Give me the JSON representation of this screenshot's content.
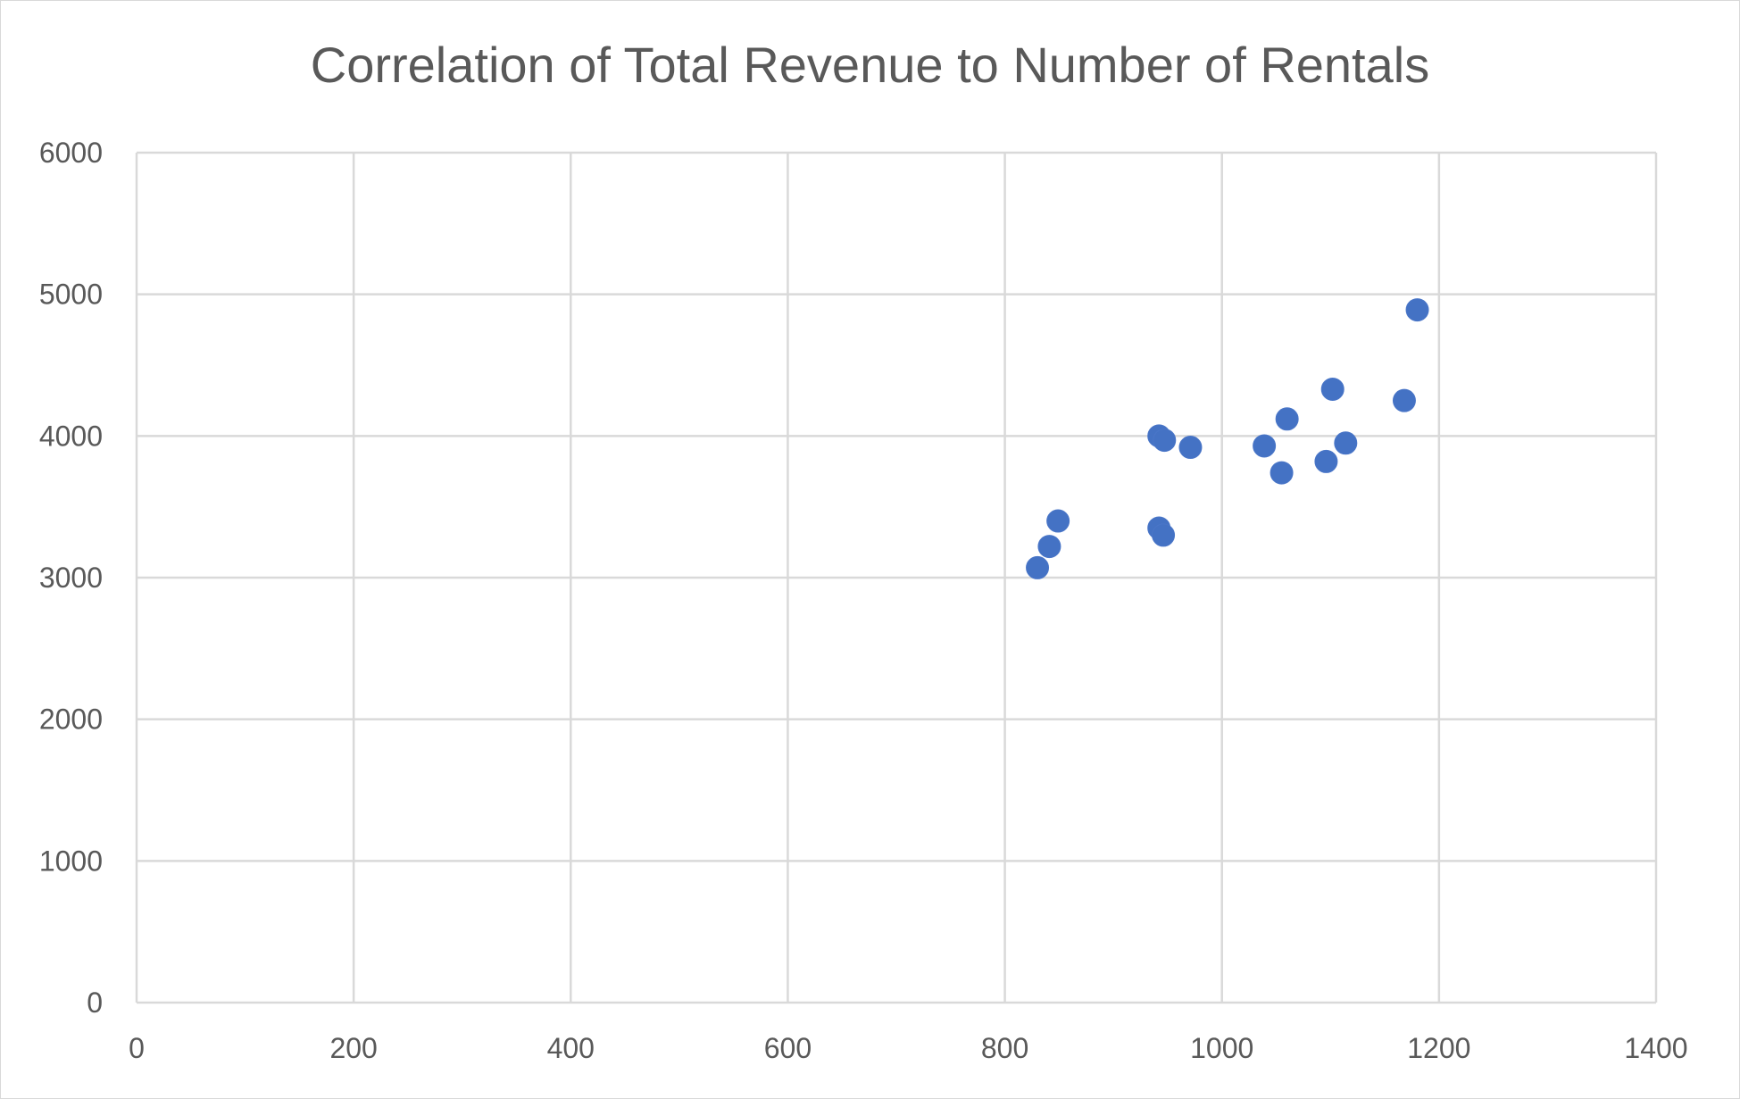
{
  "chart_data": {
    "type": "scatter",
    "title": "Correlation of Total Revenue to Number of Rentals",
    "xlabel": "",
    "ylabel": "",
    "xlim": [
      0,
      1400
    ],
    "ylim": [
      0,
      6000
    ],
    "x_ticks": [
      0,
      200,
      400,
      600,
      800,
      1000,
      1200,
      1400
    ],
    "y_ticks": [
      0,
      1000,
      2000,
      3000,
      4000,
      5000,
      6000
    ],
    "grid": true,
    "legend": "none",
    "marker_color": "#4472c4",
    "points": [
      {
        "x": 830,
        "y": 3070
      },
      {
        "x": 841,
        "y": 3220
      },
      {
        "x": 849,
        "y": 3400
      },
      {
        "x": 942,
        "y": 3350
      },
      {
        "x": 946,
        "y": 3300
      },
      {
        "x": 942,
        "y": 4000
      },
      {
        "x": 947,
        "y": 3970
      },
      {
        "x": 971,
        "y": 3920
      },
      {
        "x": 1039,
        "y": 3930
      },
      {
        "x": 1055,
        "y": 3740
      },
      {
        "x": 1060,
        "y": 4120
      },
      {
        "x": 1096,
        "y": 3820
      },
      {
        "x": 1102,
        "y": 4330
      },
      {
        "x": 1114,
        "y": 3950
      },
      {
        "x": 1168,
        "y": 4250
      },
      {
        "x": 1180,
        "y": 4890
      }
    ]
  }
}
